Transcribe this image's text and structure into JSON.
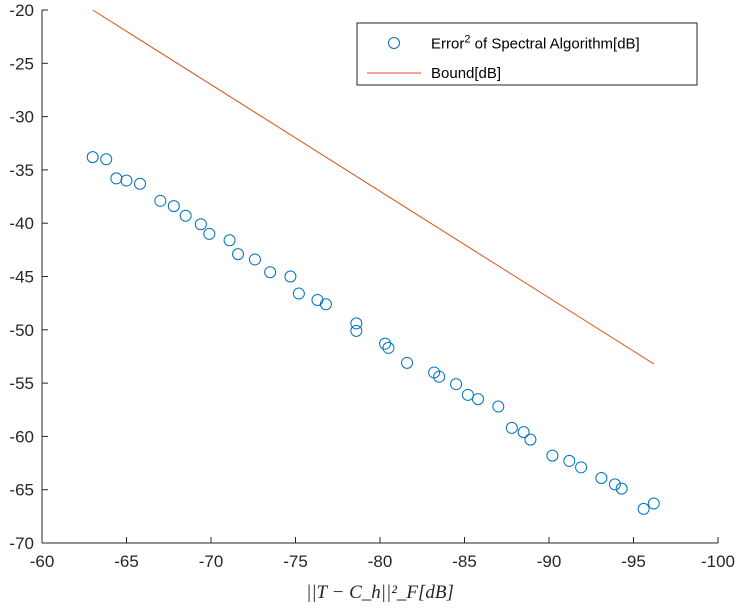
{
  "chart_data": {
    "type": "scatter",
    "title": "",
    "xlabel": "||T − C_h||²_F[dB]",
    "ylabel": "",
    "xlim": [
      -60,
      -100
    ],
    "ylim": [
      -70,
      -20
    ],
    "x_reversed": true,
    "xticks": [
      -60,
      -65,
      -70,
      -75,
      -80,
      -85,
      -90,
      -95,
      -100
    ],
    "yticks": [
      -20,
      -25,
      -30,
      -35,
      -40,
      -45,
      -50,
      -55,
      -60,
      -65,
      -70
    ],
    "xtick_labels": [
      "-60",
      "-65",
      "-70",
      "-75",
      "-80",
      "-85",
      "-90",
      "-95",
      "-100"
    ],
    "ytick_labels": [
      "-20",
      "-25",
      "-30",
      "-35",
      "-40",
      "-45",
      "-50",
      "-55",
      "-60",
      "-65",
      "-70"
    ],
    "grid": false,
    "legend_position": "top-right",
    "series": [
      {
        "name": "Error² of Spectral Algorithm[dB]",
        "legend_main": "Error",
        "legend_sup": "2",
        "legend_rest": " of Spectral Algorithm[dB]",
        "kind": "scatter",
        "marker": "circle-open",
        "color": "#0072BD",
        "points": [
          [
            -63.0,
            -33.8
          ],
          [
            -63.8,
            -34.0
          ],
          [
            -64.4,
            -35.8
          ],
          [
            -65.0,
            -36.0
          ],
          [
            -65.8,
            -36.3
          ],
          [
            -67.0,
            -37.9
          ],
          [
            -67.8,
            -38.4
          ],
          [
            -68.5,
            -39.3
          ],
          [
            -69.4,
            -40.1
          ],
          [
            -69.9,
            -41.0
          ],
          [
            -71.1,
            -41.6
          ],
          [
            -71.6,
            -42.9
          ],
          [
            -72.6,
            -43.4
          ],
          [
            -73.5,
            -44.6
          ],
          [
            -74.7,
            -45.0
          ],
          [
            -75.2,
            -46.6
          ],
          [
            -76.3,
            -47.2
          ],
          [
            -76.8,
            -47.6
          ],
          [
            -78.6,
            -49.4
          ],
          [
            -78.6,
            -50.1
          ],
          [
            -80.3,
            -51.3
          ],
          [
            -80.5,
            -51.7
          ],
          [
            -81.6,
            -53.1
          ],
          [
            -83.2,
            -54.0
          ],
          [
            -83.5,
            -54.4
          ],
          [
            -84.5,
            -55.1
          ],
          [
            -85.2,
            -56.1
          ],
          [
            -85.8,
            -56.5
          ],
          [
            -87.0,
            -57.2
          ],
          [
            -87.8,
            -59.2
          ],
          [
            -88.5,
            -59.6
          ],
          [
            -88.9,
            -60.3
          ],
          [
            -90.2,
            -61.8
          ],
          [
            -91.2,
            -62.3
          ],
          [
            -91.9,
            -62.9
          ],
          [
            -93.1,
            -63.9
          ],
          [
            -93.9,
            -64.5
          ],
          [
            -94.3,
            -64.9
          ],
          [
            -95.6,
            -66.8
          ],
          [
            -96.2,
            -66.3
          ]
        ]
      },
      {
        "name": "Bound[dB]",
        "kind": "line",
        "color": "#D95319",
        "points": [
          [
            -63.0,
            -20.0
          ],
          [
            -96.2,
            -53.2
          ]
        ]
      }
    ]
  }
}
